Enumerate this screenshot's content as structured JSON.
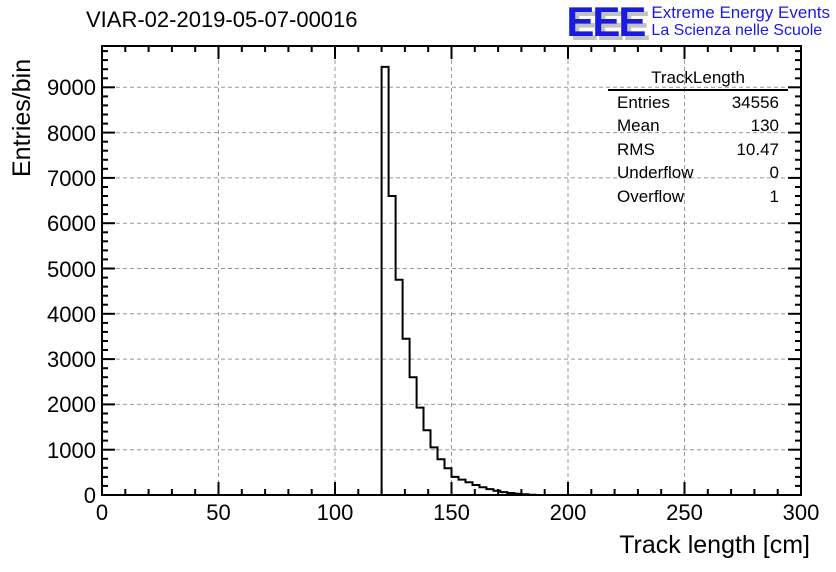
{
  "header": {
    "title": "VIAR-02-2019-05-07-00016"
  },
  "logo": {
    "acronym": "EEE",
    "line1": "Extreme Energy Events",
    "line2": "La Scienza nelle Scuole",
    "color": "#1b1be0",
    "shadow_color": "#c2c2c2"
  },
  "stats": {
    "title": "TrackLength",
    "rows": [
      {
        "label": "Entries",
        "value": "34556"
      },
      {
        "label": "Mean",
        "value": "130"
      },
      {
        "label": "RMS",
        "value": "10.47"
      },
      {
        "label": "Underflow",
        "value": "0"
      },
      {
        "label": "Overflow",
        "value": "1"
      }
    ]
  },
  "chart_data": {
    "type": "bar",
    "title": "VIAR-02-2019-05-07-00016",
    "xlabel": "Track length [cm]",
    "ylabel": "Entries/bin",
    "xlim": [
      0,
      300
    ],
    "ylim": [
      0,
      9912
    ],
    "x_major_ticks": [
      0,
      50,
      100,
      150,
      200,
      250,
      300
    ],
    "x_minor_step": 10,
    "y_major_ticks": [
      0,
      1000,
      2000,
      3000,
      4000,
      5000,
      6000,
      7000,
      8000,
      9000
    ],
    "y_minor_step": 200,
    "grid": true,
    "grid_color": "#999999",
    "line_color": "#000000",
    "bin_start": 120,
    "bin_width": 3,
    "bin_values": [
      9450,
      6600,
      4750,
      3450,
      2600,
      1930,
      1430,
      1050,
      790,
      590,
      400,
      340,
      280,
      220,
      170,
      130,
      95,
      65,
      45,
      28,
      15,
      6
    ]
  }
}
